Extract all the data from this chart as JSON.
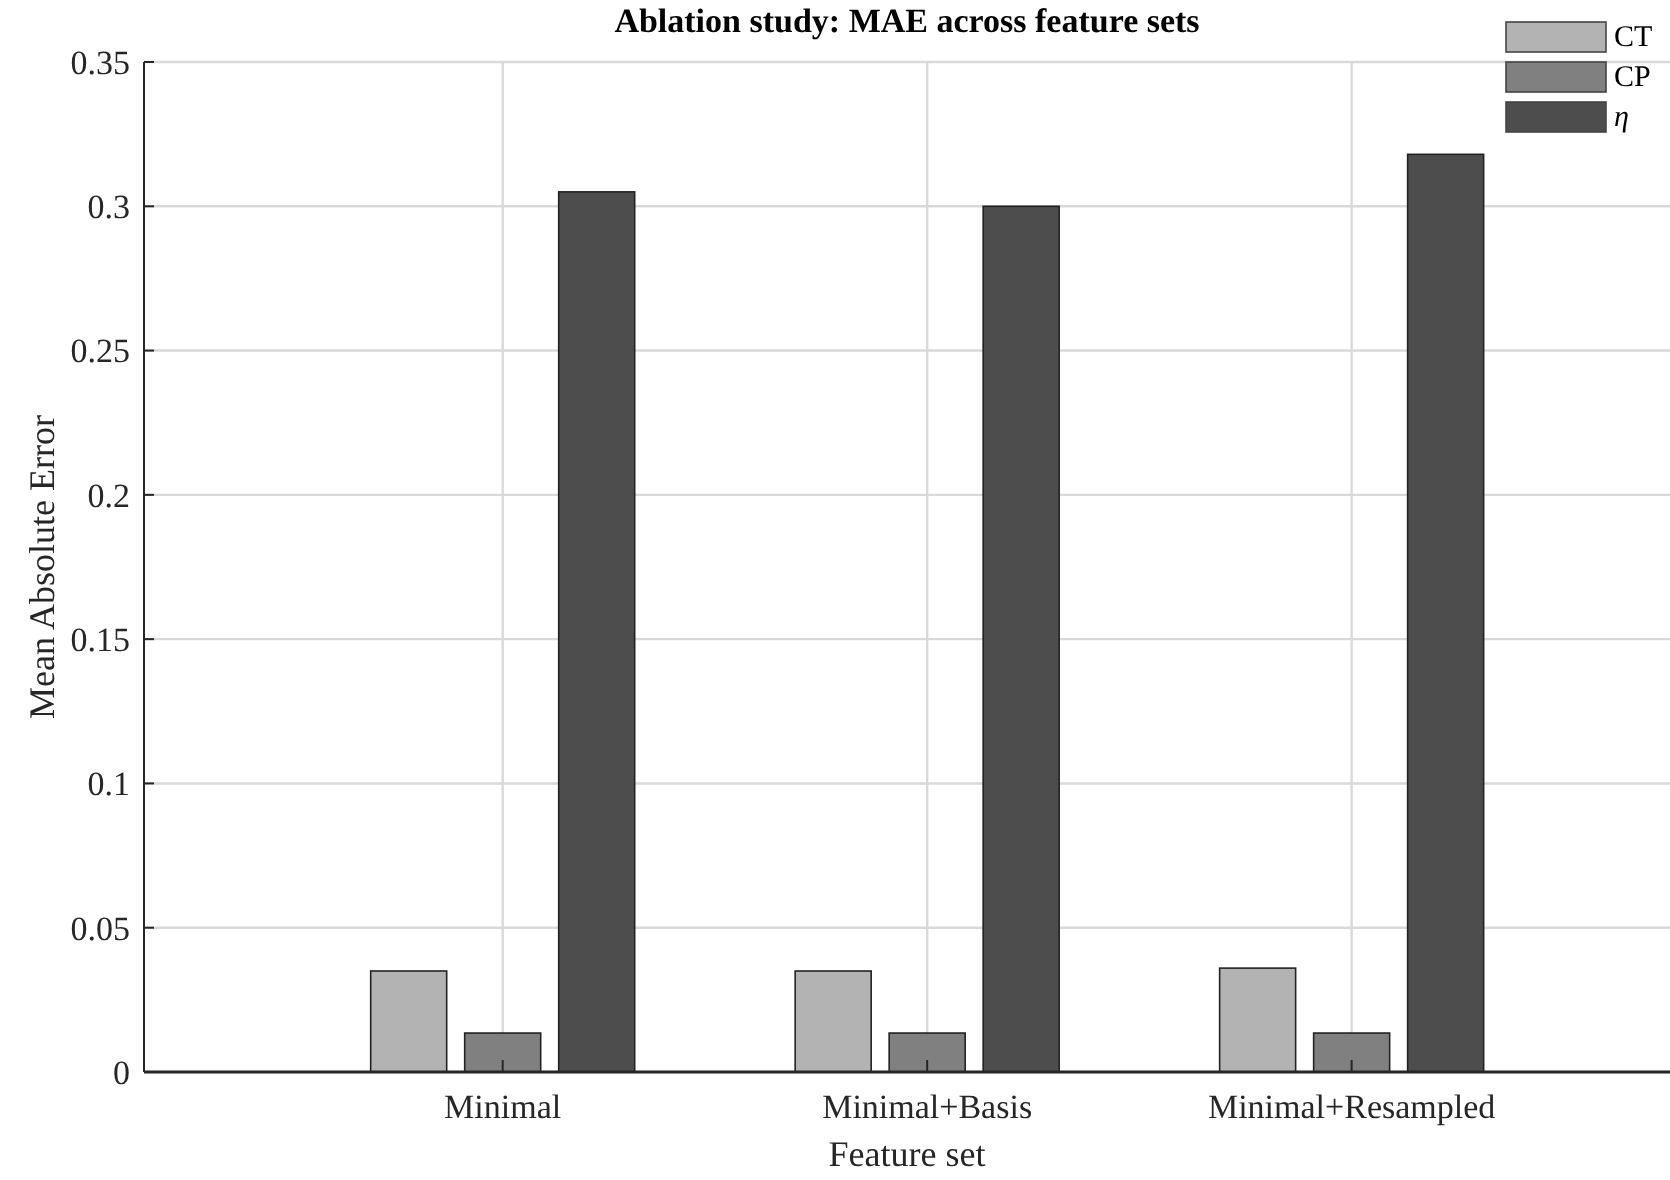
{
  "chart_data": {
    "type": "bar",
    "title": "Ablation study: MAE across feature sets",
    "xlabel": "Feature set",
    "ylabel": "Mean Absolute Error",
    "categories": [
      "Minimal",
      "Minimal+Basis",
      "Minimal+Resampled"
    ],
    "series": [
      {
        "name": "CT",
        "color": "#b3b3b3",
        "values": [
          0.035,
          0.035,
          0.036
        ]
      },
      {
        "name": "CP",
        "color": "#808080",
        "values": [
          0.0135,
          0.0135,
          0.0135
        ]
      },
      {
        "name": "η",
        "color": "#4d4d4d",
        "values": [
          0.305,
          0.3,
          0.318
        ]
      }
    ],
    "ylim": [
      0,
      0.35
    ],
    "yticks": [
      0,
      0.05,
      0.1,
      0.15,
      0.2,
      0.25,
      0.3,
      0.35
    ],
    "grid": true,
    "legend": "top right"
  }
}
